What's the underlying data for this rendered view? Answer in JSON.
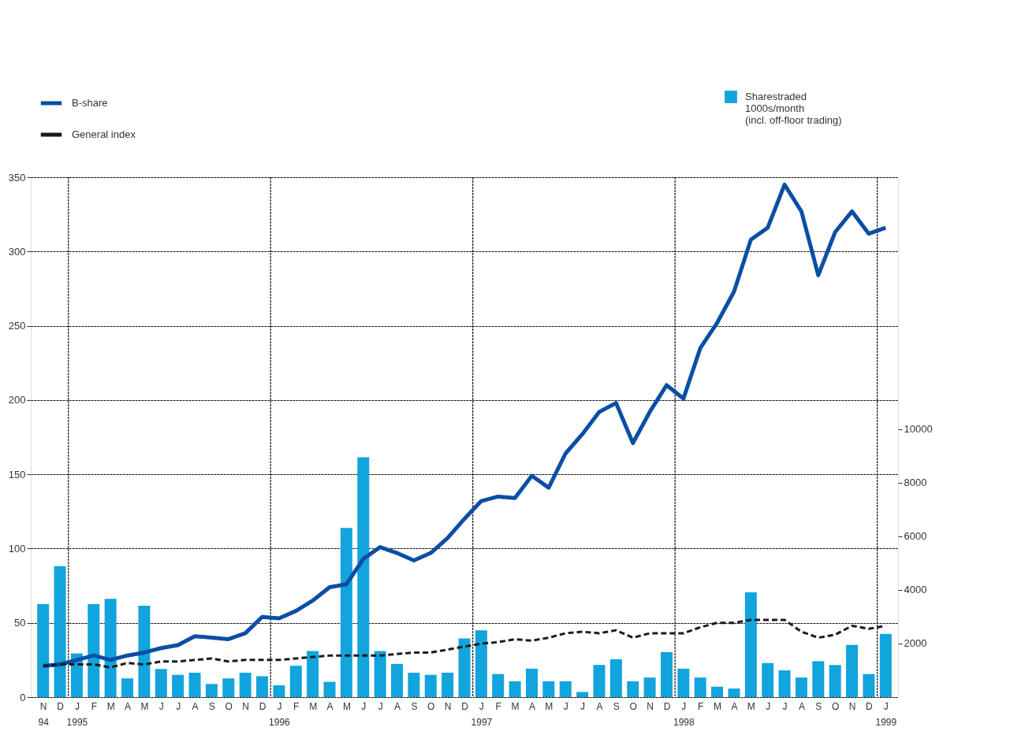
{
  "chart_data": {
    "type": "line",
    "categories": [
      "N\n94",
      "D",
      "J\n1995",
      "F",
      "M",
      "A",
      "M",
      "J",
      "J",
      "A",
      "S",
      "O",
      "N",
      "D",
      "J\n1996",
      "F",
      "M",
      "A",
      "M",
      "J",
      "J",
      "A",
      "S",
      "O",
      "N",
      "D",
      "J\n1997",
      "F",
      "M",
      "A",
      "M",
      "J",
      "J",
      "A",
      "S",
      "O",
      "N",
      "D",
      "J\n1998",
      "F",
      "M",
      "A",
      "M",
      "J",
      "J",
      "A",
      "S",
      "O",
      "N",
      "D",
      "J\n1999"
    ],
    "series": [
      {
        "name": "Sharestraded\n1000s/month\n(incl. off-floor trading)",
        "type": "bar",
        "axis": "y2",
        "color": "#12a4dc",
        "values": [
          3470,
          4890,
          1630,
          3470,
          3670,
          700,
          3410,
          1050,
          830,
          910,
          490,
          700,
          910,
          780,
          440,
          1170,
          1720,
          570,
          6310,
          8950,
          1720,
          1240,
          910,
          830,
          910,
          2190,
          2490,
          860,
          590,
          1060,
          590,
          590,
          190,
          1200,
          1410,
          590,
          730,
          1680,
          1060,
          730,
          390,
          320,
          3910,
          1270,
          1000,
          730,
          1340,
          1200,
          1950,
          860,
          2360
        ]
      },
      {
        "name": "B-share",
        "color": "#0a4ea6",
        "line_style": "solid",
        "values": [
          21,
          22,
          25,
          28,
          25,
          28,
          30,
          33,
          35,
          41,
          40,
          39,
          43,
          54,
          53,
          58,
          65,
          74,
          76,
          93,
          101,
          97,
          92,
          97,
          107,
          120,
          132,
          135,
          134,
          149,
          141,
          164,
          177,
          192,
          198,
          171,
          192,
          210,
          201,
          235,
          252,
          273,
          308,
          316,
          345,
          327,
          284,
          313,
          327,
          312,
          316
        ]
      },
      {
        "name": "General index",
        "color": "#1a1a1a",
        "line_style": "dashed",
        "values": [
          21,
          22,
          22,
          22,
          20,
          23,
          22,
          24,
          24,
          25,
          26,
          24,
          25,
          25,
          25,
          26,
          27,
          28,
          28,
          28,
          28,
          29,
          30,
          30,
          32,
          34,
          36,
          37,
          39,
          38,
          40,
          43,
          44,
          43,
          45,
          40,
          43,
          43,
          43,
          47,
          50,
          50,
          52,
          52,
          52,
          44,
          40,
          42,
          48,
          46,
          48
        ]
      }
    ],
    "ylim": [
      0,
      350
    ],
    "yticks": [
      0,
      50,
      100,
      150,
      200,
      250,
      300,
      350
    ],
    "y2lim": [
      0,
      19400
    ],
    "y2ticks": [
      2000,
      4000,
      6000,
      8000,
      10000
    ],
    "grid": true,
    "legend": "top"
  }
}
